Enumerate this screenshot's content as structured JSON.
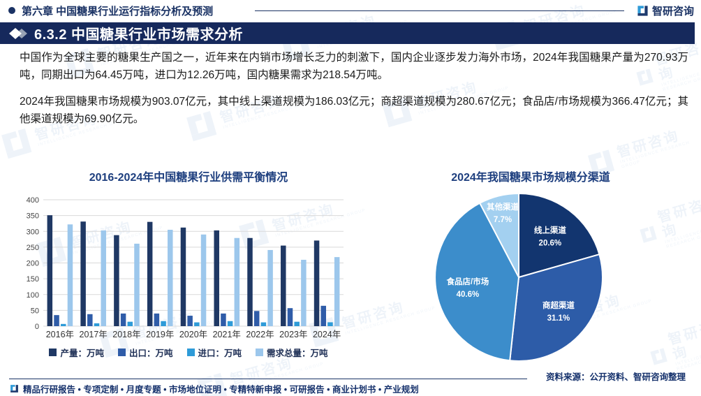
{
  "header": {
    "chapter_title": "第六章 中国糖果行业运行指标分析及预测",
    "brand_name": "智研咨询"
  },
  "section": {
    "title": "6.3.2 中国糖果行业市场需求分析"
  },
  "body": {
    "paragraph1": "中国作为全球主要的糖果生产国之一，近年来在内销市场增长乏力的刺激下，国内企业逐步发力海外市场，2024年我国糖果产量为270.93万吨，同期出口为64.45万吨，进口为12.26万吨，国内糖果需求为218.54万吨。",
    "paragraph2": "2024年我国糖果市场规模为903.07亿元，其中线上渠道规模为186.03亿元；商超渠道规模为280.67亿元；食品店/市场规模为366.47亿元；其他渠道规模为69.90亿元。"
  },
  "chart_data": [
    {
      "type": "bar",
      "title": "2016-2024年中国糖果行业供需平衡情况",
      "categories": [
        "2016年",
        "2017年",
        "2018年",
        "2019年",
        "2020年",
        "2021年",
        "2022年",
        "2023年",
        "2024年"
      ],
      "series": [
        {
          "name": "产量：万吨",
          "color": "#1F3864",
          "values": [
            351,
            331,
            288,
            330,
            312,
            303,
            279,
            255,
            270.93
          ]
        },
        {
          "name": "出口：万吨",
          "color": "#2F5CA8",
          "values": [
            35,
            38,
            40,
            40,
            33,
            40,
            48,
            57,
            64.45
          ]
        },
        {
          "name": "进口：万吨",
          "color": "#2E9BD8",
          "values": [
            7,
            9,
            14,
            16,
            12,
            16,
            12,
            14,
            12.26
          ]
        },
        {
          "name": "需求总量：万吨",
          "color": "#9CC7EC",
          "values": [
            322,
            303,
            261,
            305,
            290,
            279,
            241,
            210,
            218.54
          ]
        }
      ],
      "ylim": [
        0,
        400
      ],
      "ytick_step": 50,
      "grid": true,
      "legend_position": "bottom"
    },
    {
      "type": "pie",
      "title": "2024年我国糖果市场规模分渠道",
      "direction": "clockwise",
      "start_angle_deg": 0,
      "value_suffix": "%",
      "slices": [
        {
          "label": "线上渠道",
          "value": 20.6,
          "color": "#12356F",
          "label_r": 0.62
        },
        {
          "label": "商超渠道",
          "value": 31.1,
          "color": "#2D5CA8",
          "label_r": 0.62
        },
        {
          "label": "食品店/市场",
          "value": 40.6,
          "color": "#3C8DCB",
          "label_r": 0.62
        },
        {
          "label": "其他渠道",
          "value": 7.7,
          "color": "#A3D0F0",
          "label_r": 0.8
        }
      ]
    }
  ],
  "footer": {
    "services": "精品行研报告 • 专项定制 • 月度专题 • 市场地位证明 • 专精特新申报 • 可研报告 • 商业计划书 • 产业规划",
    "source": "资料来源：公开资料、智研咨询整理"
  },
  "watermark": {
    "text": "智研咨询",
    "subtext": "INTELLIGENCE RESEARCH GROUP"
  },
  "colors": {
    "accent_navy": "#16295C",
    "header_text": "#1A3264",
    "chart_title": "#1D3E7E",
    "body_text": "#1A1A1A",
    "footer_text": "#14306B",
    "gridline": "#D9D9D9",
    "logo_light_blue": "#2F9BD8",
    "logo_navy": "#1E3A6E"
  }
}
